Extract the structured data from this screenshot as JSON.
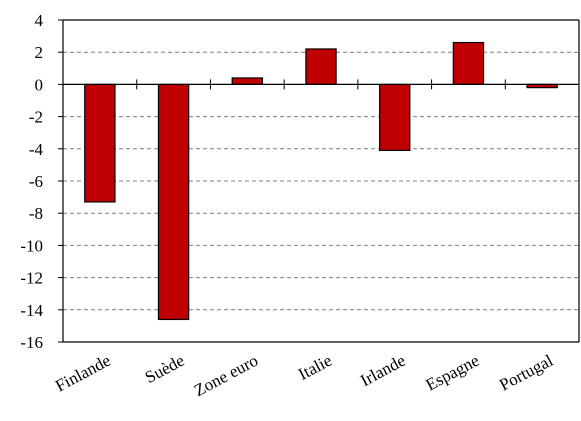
{
  "chart_data": {
    "type": "bar",
    "title": "",
    "categories": [
      "Finlande",
      "Suède",
      "Zone euro",
      "Italie",
      "Irlande",
      "Espagne",
      "Portugal"
    ],
    "values": [
      -7.3,
      -14.6,
      0.4,
      2.2,
      -4.1,
      2.6,
      -0.2
    ],
    "ylim": [
      -16,
      4
    ],
    "yticks": [
      4,
      2,
      0,
      -2,
      -4,
      -6,
      -8,
      -10,
      -12,
      -14,
      -16
    ],
    "grid": true,
    "bar_color": "#c00000",
    "grid_color": "#808080"
  }
}
